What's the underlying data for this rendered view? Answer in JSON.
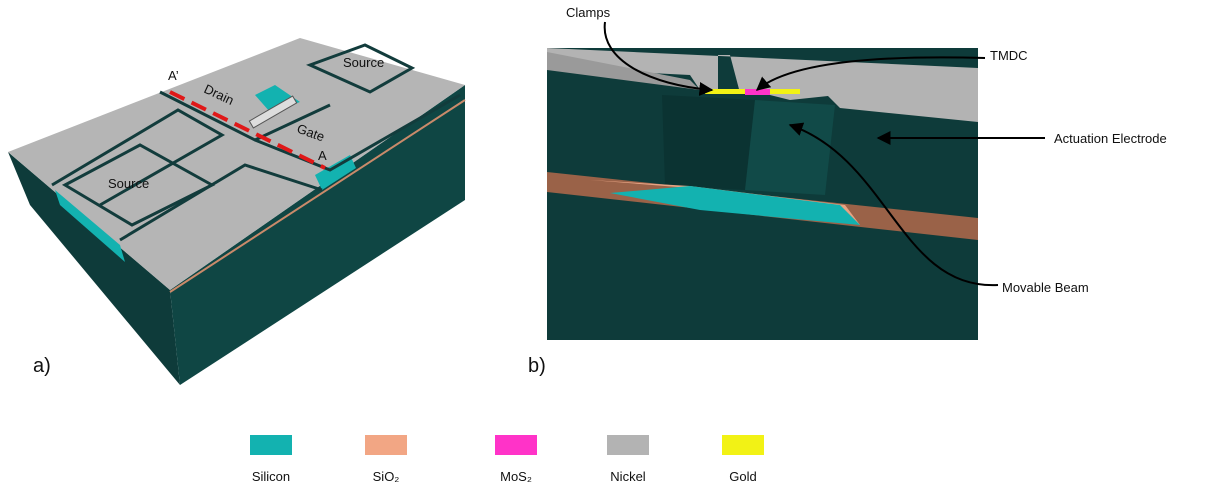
{
  "panel_a": {
    "label": "a)",
    "pads": [
      "Source",
      "Drain",
      "Gate",
      "Source"
    ],
    "section_marks": [
      "A’",
      "A"
    ]
  },
  "panel_b": {
    "label": "b)",
    "callouts": [
      "Clamps",
      "TMDC",
      "Actuation Electrode",
      "Movable Beam"
    ]
  },
  "legend": [
    {
      "name": "Silicon",
      "color": "#13b2b0"
    },
    {
      "name": "SiO₂",
      "color": "#f2a684"
    },
    {
      "name": "MoS₂",
      "color": "#ff33c8"
    },
    {
      "name": "Nickel",
      "color": "#b3b3b3"
    },
    {
      "name": "Gold",
      "color": "#f2f215"
    }
  ]
}
